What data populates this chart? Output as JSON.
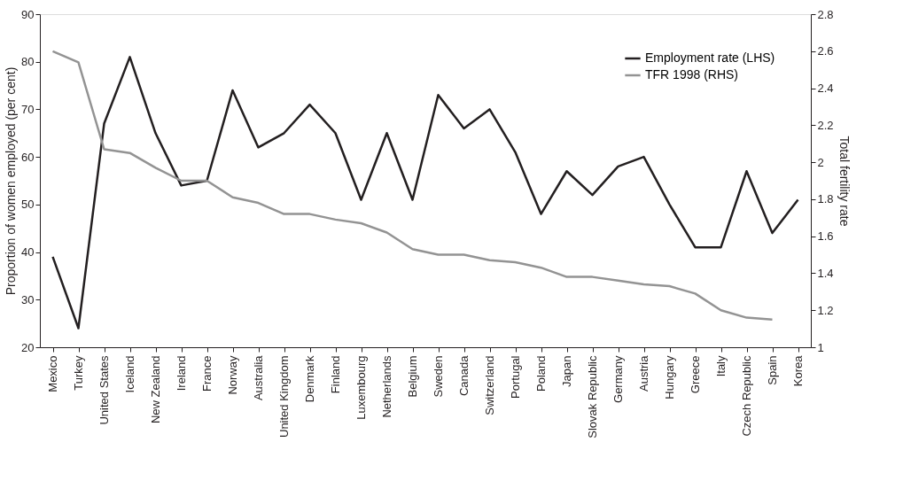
{
  "chart_data": {
    "type": "line",
    "ylabel": "Proportion of  women employed (per cent)",
    "y2label": "Total fertility rate",
    "categories": [
      "Mexico",
      "Turkey",
      "United States",
      "Iceland",
      "New Zealand",
      "Ireland",
      "France",
      "Norway",
      "Australia",
      "United Kingdom",
      "Denmark",
      "Finland",
      "Luxembourg",
      "Netherlands",
      "Belgium",
      "Sweden",
      "Canada",
      "Switzerland",
      "Portugal",
      "Poland",
      "Japan",
      "Slovak Republic",
      "Germany",
      "Austria",
      "Hungary",
      "Greece",
      "Italy",
      "Czech Republic",
      "Spain",
      "Korea"
    ],
    "series": [
      {
        "name": "Employment rate (LHS)",
        "color": "#231f20",
        "values": [
          39,
          24,
          67,
          81,
          65,
          54,
          55,
          74,
          62,
          65,
          71,
          65,
          51,
          65,
          51,
          73,
          66,
          70,
          61,
          48,
          57,
          52,
          58,
          60,
          50,
          41,
          41,
          57,
          44,
          51
        ]
      },
      {
        "name": "TFR 1998 (RHS)",
        "color": "#939393",
        "axis": "y2",
        "values": [
          2.6,
          2.54,
          2.07,
          2.05,
          1.97,
          1.9,
          1.9,
          1.81,
          1.78,
          1.72,
          1.72,
          1.69,
          1.67,
          1.62,
          1.53,
          1.5,
          1.5,
          1.47,
          1.46,
          1.43,
          1.38,
          1.38,
          1.36,
          1.34,
          1.33,
          1.29,
          1.2,
          1.16,
          1.15,
          null
        ]
      }
    ],
    "ylim": [
      20,
      90
    ],
    "yticks": [
      20,
      30,
      40,
      50,
      60,
      70,
      80,
      90
    ],
    "y2lim": [
      1,
      2.8
    ],
    "y2ticks": [
      1,
      1.2,
      1.4,
      1.6,
      1.8,
      2,
      2.2,
      2.4,
      2.6,
      2.8
    ],
    "grid": false,
    "legend": "top right",
    "line_style": "solid",
    "marker": "none"
  }
}
